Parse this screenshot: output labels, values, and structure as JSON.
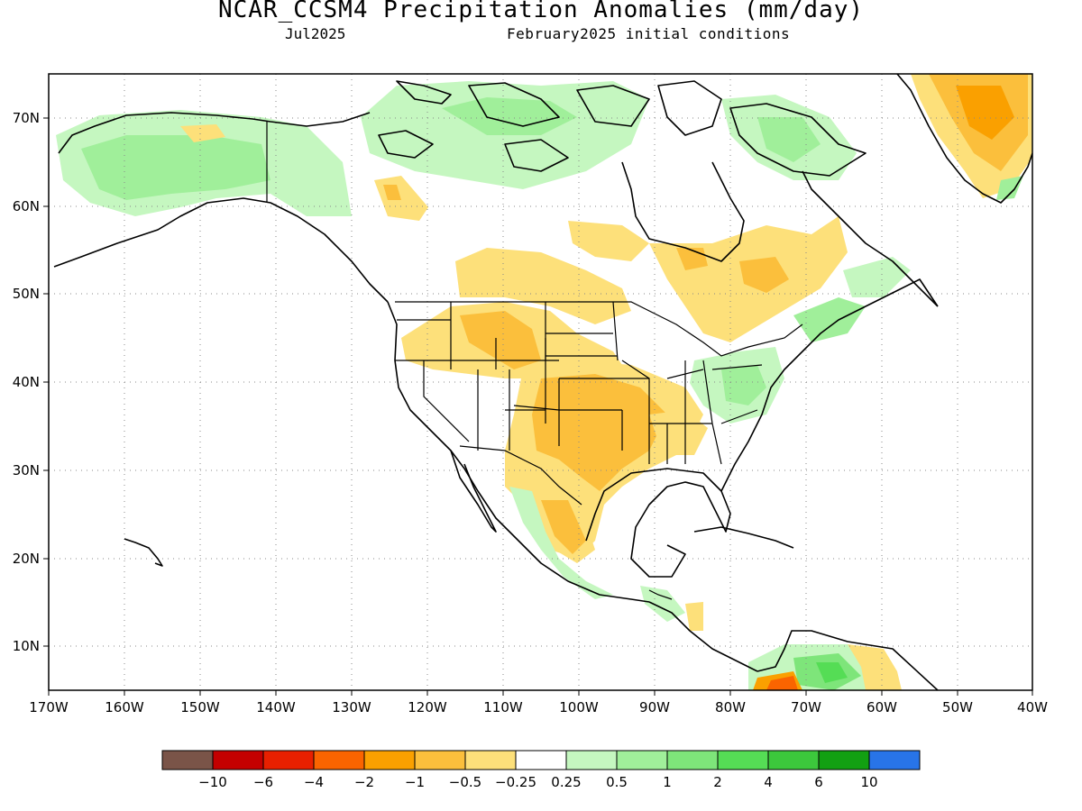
{
  "title": "NCAR_CCSM4 Precipitation Anomalies (mm/day)",
  "subtitle_left": "Jul2025",
  "subtitle_right": "February2025 initial conditions",
  "map": {
    "lon_labels": [
      "170W",
      "160W",
      "150W",
      "140W",
      "130W",
      "120W",
      "110W",
      "100W",
      "90W",
      "80W",
      "70W",
      "60W",
      "50W",
      "40W"
    ],
    "lat_labels": [
      "70N",
      "60N",
      "50N",
      "40N",
      "30N",
      "20N",
      "10N"
    ],
    "grid": "dotted"
  },
  "colorbar": {
    "colors": [
      "#7a5448",
      "#c40000",
      "#e82000",
      "#fa6400",
      "#faa000",
      "#fbbf3c",
      "#fde07a",
      "#ffffff",
      "#c5f7c0",
      "#a0ef9a",
      "#7ee57a",
      "#55dd55",
      "#3cc83c",
      "#12a012",
      "#2874e8"
    ],
    "tick_labels": [
      "−10",
      "−6",
      "−4",
      "−2",
      "−1",
      "−0.5",
      "−0.25",
      "0.25",
      "0.5",
      "1",
      "2",
      "4",
      "6",
      "10"
    ]
  },
  "colors": {
    "dry_light": "#fde07a",
    "dry_mid": "#fbbf3c",
    "dry_strong": "#faa000",
    "dry_heavy": "#fa6400",
    "wet_light": "#c5f7c0",
    "wet_mid": "#a0ef9a",
    "wet_strong": "#7ee57a",
    "wet_heavy": "#55dd55"
  }
}
